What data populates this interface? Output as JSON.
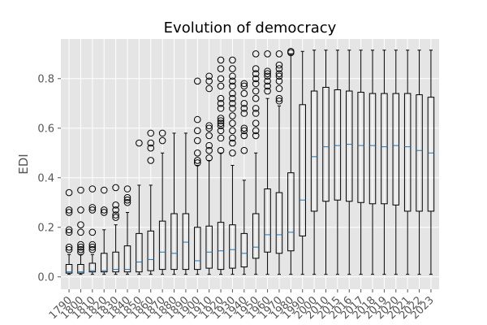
{
  "chart_data": {
    "type": "box",
    "title": "Evolution of democracy",
    "xlabel": "",
    "ylabel": "EDI",
    "ylim": [
      -0.05,
      0.96
    ],
    "yticks": [
      "0.0",
      "0.2",
      "0.4",
      "0.6",
      "0.8"
    ],
    "grid": true,
    "legend": "none",
    "colors": {
      "background": "#e5e5e5",
      "grid": "#ffffff",
      "box": "#000000",
      "median": "#1f77b4",
      "tick": "#555555"
    },
    "categories": [
      "1790",
      "1800",
      "1810",
      "1820",
      "1830",
      "1840",
      "1850",
      "1860",
      "1870",
      "1880",
      "1890",
      "1900",
      "1910",
      "1920",
      "1930",
      "1940",
      "1950",
      "1960",
      "1970",
      "1980",
      "1990",
      "2000",
      "2010",
      "2015",
      "2016",
      "2017",
      "2018",
      "2019",
      "2020",
      "2021",
      "2022",
      "2023"
    ],
    "boxes": [
      {
        "whislo": 0.01,
        "q1": 0.015,
        "med": 0.02,
        "q3": 0.05,
        "whishi": 0.09,
        "fliers": [
          0.11,
          0.12,
          0.18,
          0.19,
          0.26,
          0.27,
          0.34
        ]
      },
      {
        "whislo": 0.01,
        "q1": 0.015,
        "med": 0.02,
        "q3": 0.05,
        "whishi": 0.09,
        "fliers": [
          0.1,
          0.11,
          0.12,
          0.13,
          0.18,
          0.21,
          0.27,
          0.35
        ]
      },
      {
        "whislo": 0.01,
        "q1": 0.02,
        "med": 0.025,
        "q3": 0.055,
        "whishi": 0.09,
        "fliers": [
          0.11,
          0.12,
          0.13,
          0.18,
          0.27,
          0.28,
          0.355
        ]
      },
      {
        "whislo": 0.01,
        "q1": 0.02,
        "med": 0.025,
        "q3": 0.095,
        "whishi": 0.19,
        "fliers": [
          0.26,
          0.27,
          0.35
        ]
      },
      {
        "whislo": 0.01,
        "q1": 0.02,
        "med": 0.03,
        "q3": 0.1,
        "whishi": 0.21,
        "fliers": [
          0.24,
          0.25,
          0.27,
          0.29,
          0.36
        ]
      },
      {
        "whislo": 0.01,
        "q1": 0.02,
        "med": 0.03,
        "q3": 0.125,
        "whishi": 0.26,
        "fliers": [
          0.3,
          0.31,
          0.32,
          0.355
        ]
      },
      {
        "whislo": 0.01,
        "q1": 0.02,
        "med": 0.06,
        "q3": 0.175,
        "whishi": 0.37,
        "fliers": [
          0.54
        ]
      },
      {
        "whislo": 0.01,
        "q1": 0.025,
        "med": 0.07,
        "q3": 0.185,
        "whishi": 0.37,
        "fliers": [
          0.47,
          0.52,
          0.54,
          0.58
        ]
      },
      {
        "whislo": 0.01,
        "q1": 0.03,
        "med": 0.1,
        "q3": 0.225,
        "whishi": 0.5,
        "fliers": [
          0.55,
          0.58
        ]
      },
      {
        "whislo": 0.01,
        "q1": 0.03,
        "med": 0.095,
        "q3": 0.255,
        "whishi": 0.58,
        "fliers": []
      },
      {
        "whislo": 0.01,
        "q1": 0.03,
        "med": 0.14,
        "q3": 0.255,
        "whishi": 0.58,
        "fliers": []
      },
      {
        "whislo": 0.01,
        "q1": 0.03,
        "med": 0.065,
        "q3": 0.2,
        "whishi": 0.45,
        "fliers": [
          0.46,
          0.47,
          0.5,
          0.55,
          0.59,
          0.635,
          0.79
        ]
      },
      {
        "whislo": 0.01,
        "q1": 0.035,
        "med": 0.1,
        "q3": 0.205,
        "whishi": 0.47,
        "fliers": [
          0.48,
          0.51,
          0.53,
          0.57,
          0.6,
          0.61,
          0.76,
          0.79,
          0.81
        ]
      },
      {
        "whislo": 0.01,
        "q1": 0.03,
        "med": 0.105,
        "q3": 0.22,
        "whishi": 0.5,
        "fliers": [
          0.51,
          0.56,
          0.59,
          0.61,
          0.62,
          0.63,
          0.64,
          0.68,
          0.7,
          0.72,
          0.77,
          0.8,
          0.84,
          0.875
        ]
      },
      {
        "whislo": 0.01,
        "q1": 0.035,
        "med": 0.11,
        "q3": 0.21,
        "whishi": 0.45,
        "fliers": [
          0.5,
          0.54,
          0.56,
          0.59,
          0.62,
          0.65,
          0.68,
          0.7,
          0.72,
          0.74,
          0.77,
          0.79,
          0.81,
          0.84,
          0.875
        ]
      },
      {
        "whislo": 0.01,
        "q1": 0.04,
        "med": 0.095,
        "q3": 0.175,
        "whishi": 0.39,
        "fliers": [
          0.51,
          0.57,
          0.59,
          0.6,
          0.66,
          0.68,
          0.7,
          0.74,
          0.77,
          0.78
        ]
      },
      {
        "whislo": 0.01,
        "q1": 0.075,
        "med": 0.12,
        "q3": 0.255,
        "whishi": 0.5,
        "fliers": [
          0.57,
          0.59,
          0.62,
          0.66,
          0.68,
          0.72,
          0.75,
          0.78,
          0.8,
          0.82,
          0.84,
          0.9
        ]
      },
      {
        "whislo": 0.01,
        "q1": 0.1,
        "med": 0.17,
        "q3": 0.355,
        "whishi": 0.72,
        "fliers": [
          0.75,
          0.77,
          0.79,
          0.81,
          0.82,
          0.83,
          0.9
        ]
      },
      {
        "whislo": 0.01,
        "q1": 0.095,
        "med": 0.17,
        "q3": 0.34,
        "whishi": 0.69,
        "fliers": [
          0.71,
          0.72,
          0.76,
          0.79,
          0.81,
          0.82,
          0.84,
          0.855,
          0.9
        ]
      },
      {
        "whislo": 0.01,
        "q1": 0.105,
        "med": 0.18,
        "q3": 0.42,
        "whishi": 0.9,
        "fliers": [
          0.905,
          0.91
        ]
      },
      {
        "whislo": 0.01,
        "q1": 0.165,
        "med": 0.31,
        "q3": 0.695,
        "whishi": 0.91,
        "fliers": []
      },
      {
        "whislo": 0.01,
        "q1": 0.265,
        "med": 0.485,
        "q3": 0.75,
        "whishi": 0.915,
        "fliers": []
      },
      {
        "whislo": 0.01,
        "q1": 0.305,
        "med": 0.525,
        "q3": 0.765,
        "whishi": 0.915,
        "fliers": []
      },
      {
        "whislo": 0.01,
        "q1": 0.31,
        "med": 0.53,
        "q3": 0.755,
        "whishi": 0.915,
        "fliers": []
      },
      {
        "whislo": 0.01,
        "q1": 0.305,
        "med": 0.535,
        "q3": 0.75,
        "whishi": 0.915,
        "fliers": []
      },
      {
        "whislo": 0.01,
        "q1": 0.3,
        "med": 0.53,
        "q3": 0.745,
        "whishi": 0.915,
        "fliers": []
      },
      {
        "whislo": 0.01,
        "q1": 0.295,
        "med": 0.53,
        "q3": 0.74,
        "whishi": 0.915,
        "fliers": []
      },
      {
        "whislo": 0.01,
        "q1": 0.295,
        "med": 0.525,
        "q3": 0.74,
        "whishi": 0.915,
        "fliers": []
      },
      {
        "whislo": 0.01,
        "q1": 0.29,
        "med": 0.53,
        "q3": 0.74,
        "whishi": 0.915,
        "fliers": []
      },
      {
        "whislo": 0.01,
        "q1": 0.265,
        "med": 0.525,
        "q3": 0.74,
        "whishi": 0.915,
        "fliers": []
      },
      {
        "whislo": 0.01,
        "q1": 0.265,
        "med": 0.51,
        "q3": 0.735,
        "whishi": 0.915,
        "fliers": []
      },
      {
        "whislo": 0.01,
        "q1": 0.265,
        "med": 0.5,
        "q3": 0.725,
        "whishi": 0.915,
        "fliers": []
      }
    ]
  }
}
